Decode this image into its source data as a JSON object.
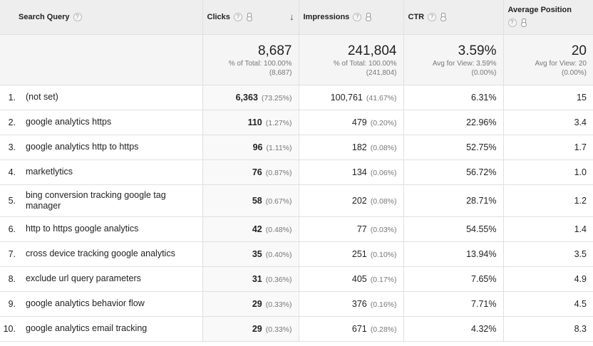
{
  "headers": {
    "query": "Search Query",
    "clicks": "Clicks",
    "impressions": "Impressions",
    "ctr": "CTR",
    "position": "Average Position",
    "help_glyph": "?",
    "sort_glyph": "↓"
  },
  "totals": {
    "clicks": {
      "value": "8,687",
      "line1": "% of Total: 100.00%",
      "line2": "(8,687)"
    },
    "impressions": {
      "value": "241,804",
      "line1": "% of Total: 100.00%",
      "line2": "(241,804)"
    },
    "ctr": {
      "value": "3.59%",
      "line1": "Avg for View: 3.59%",
      "line2": "(0.00%)"
    },
    "position": {
      "value": "20",
      "line1": "Avg for View: 20",
      "line2": "(0.00%)"
    }
  },
  "rows": [
    {
      "index": "1.",
      "query": "(not set)",
      "clicks": "6,363",
      "clicks_pct": "(73.25%)",
      "impressions": "100,761",
      "impressions_pct": "(41.67%)",
      "ctr": "6.31%",
      "position": "15"
    },
    {
      "index": "2.",
      "query": "google analytics https",
      "clicks": "110",
      "clicks_pct": "(1.27%)",
      "impressions": "479",
      "impressions_pct": "(0.20%)",
      "ctr": "22.96%",
      "position": "3.4"
    },
    {
      "index": "3.",
      "query": "google analytics http to https",
      "clicks": "96",
      "clicks_pct": "(1.11%)",
      "impressions": "182",
      "impressions_pct": "(0.08%)",
      "ctr": "52.75%",
      "position": "1.7"
    },
    {
      "index": "4.",
      "query": "marketlytics",
      "clicks": "76",
      "clicks_pct": "(0.87%)",
      "impressions": "134",
      "impressions_pct": "(0.06%)",
      "ctr": "56.72%",
      "position": "1.0"
    },
    {
      "index": "5.",
      "query": "bing conversion tracking google tag manager",
      "clicks": "58",
      "clicks_pct": "(0.67%)",
      "impressions": "202",
      "impressions_pct": "(0.08%)",
      "ctr": "28.71%",
      "position": "1.2"
    },
    {
      "index": "6.",
      "query": "http to https google analytics",
      "clicks": "42",
      "clicks_pct": "(0.48%)",
      "impressions": "77",
      "impressions_pct": "(0.03%)",
      "ctr": "54.55%",
      "position": "1.4"
    },
    {
      "index": "7.",
      "query": "cross device tracking google analytics",
      "clicks": "35",
      "clicks_pct": "(0.40%)",
      "impressions": "251",
      "impressions_pct": "(0.10%)",
      "ctr": "13.94%",
      "position": "3.5"
    },
    {
      "index": "8.",
      "query": "exclude url query parameters",
      "clicks": "31",
      "clicks_pct": "(0.36%)",
      "impressions": "405",
      "impressions_pct": "(0.17%)",
      "ctr": "7.65%",
      "position": "4.9"
    },
    {
      "index": "9.",
      "query": "google analytics behavior flow",
      "clicks": "29",
      "clicks_pct": "(0.33%)",
      "impressions": "376",
      "impressions_pct": "(0.16%)",
      "ctr": "7.71%",
      "position": "4.5"
    },
    {
      "index": "10.",
      "query": "google analytics email tracking",
      "clicks": "29",
      "clicks_pct": "(0.33%)",
      "impressions": "671",
      "impressions_pct": "(0.28%)",
      "ctr": "4.32%",
      "position": "8.3"
    }
  ]
}
